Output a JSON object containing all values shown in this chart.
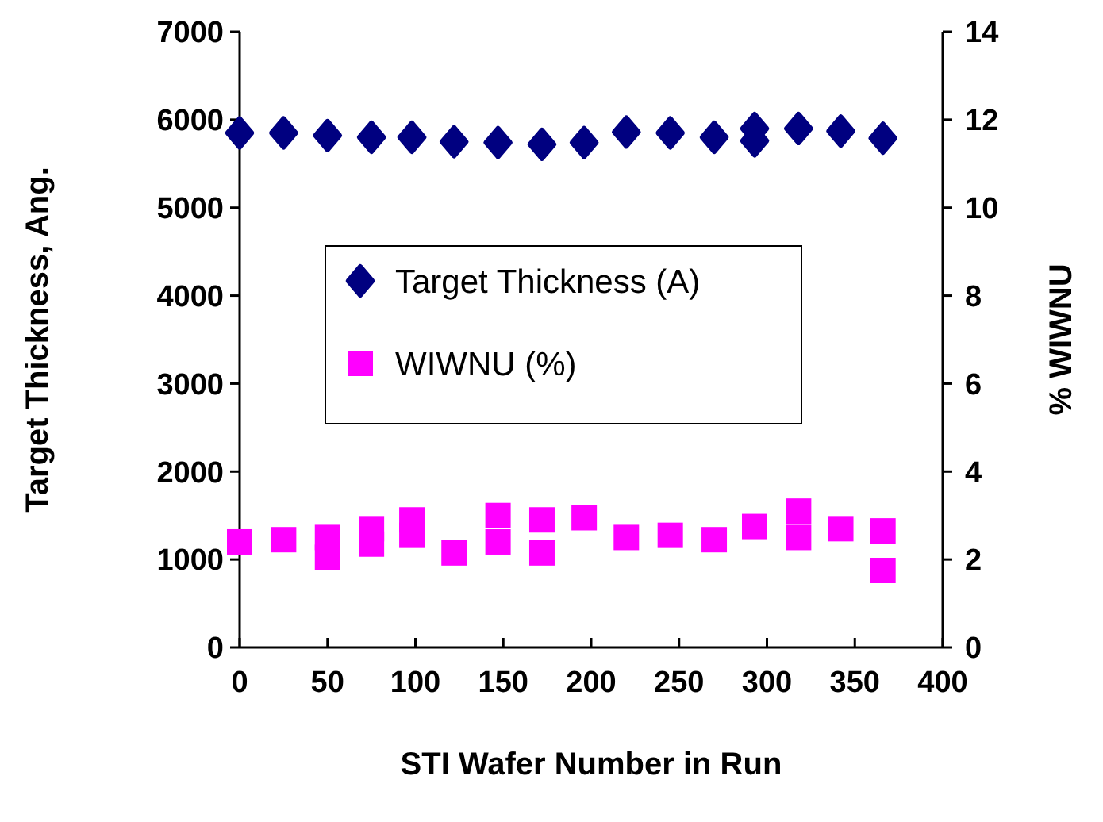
{
  "chart_data": {
    "type": "scatter",
    "xlabel": "STI Wafer Number in Run",
    "ylabel": "Target Thickness, Ang.",
    "y2label": "% WIWNU",
    "xlim": [
      0,
      400
    ],
    "xticks": [
      0,
      50,
      100,
      150,
      200,
      250,
      300,
      350,
      400
    ],
    "ylim": [
      0,
      7000
    ],
    "yticks": [
      0,
      1000,
      2000,
      3000,
      4000,
      5000,
      6000,
      7000
    ],
    "y2lim": [
      0,
      14
    ],
    "y2ticks": [
      0,
      2,
      4,
      6,
      8,
      10,
      12,
      14
    ],
    "legend": "center",
    "grid": false,
    "series": [
      {
        "name": "Target Thickness (A)",
        "color": "#000080",
        "marker": "diamond",
        "x": [
          0,
          25,
          50,
          75,
          98,
          122,
          147,
          172,
          196,
          220,
          245,
          270,
          293,
          293,
          318,
          342,
          366
        ],
        "values": [
          5850,
          5850,
          5820,
          5800,
          5800,
          5750,
          5740,
          5720,
          5740,
          5860,
          5850,
          5800,
          5900,
          5760,
          5900,
          5870,
          5790
        ]
      },
      {
        "name": "WIWNU (%)",
        "color": "#ff00ff",
        "marker": "square",
        "axis": "y2",
        "x": [
          0,
          25,
          50,
          50,
          75,
          75,
          98,
          98,
          122,
          147,
          147,
          172,
          172,
          196,
          220,
          245,
          270,
          293,
          318,
          318,
          342,
          366,
          366
        ],
        "values": [
          2.4,
          2.45,
          2.5,
          2.05,
          2.7,
          2.35,
          2.9,
          2.55,
          2.15,
          3.0,
          2.4,
          2.9,
          2.15,
          2.95,
          2.5,
          2.55,
          2.45,
          2.75,
          3.1,
          2.5,
          2.7,
          2.65,
          1.75
        ]
      }
    ]
  }
}
